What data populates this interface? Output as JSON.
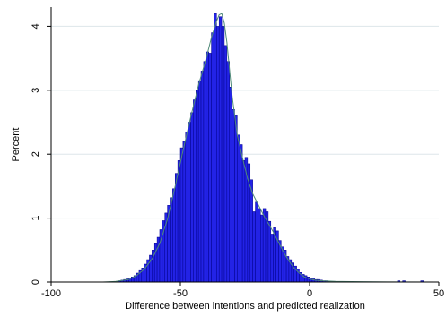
{
  "chart_data": {
    "type": "bar",
    "subtype": "histogram-with-density",
    "title": "",
    "xlabel": "Difference between intentions and predicted realization",
    "ylabel": "Percent",
    "xlim": [
      -100,
      50
    ],
    "ylim": [
      0,
      4.3
    ],
    "x_ticks": [
      "-100",
      "-50",
      "0",
      "50"
    ],
    "y_ticks": [
      "0",
      "1",
      "2",
      "3",
      "4"
    ],
    "grid": "horizontal",
    "bin_width": 1,
    "colors": {
      "bar_fill": "#2323e6",
      "bar_edge": "#00008c",
      "density": "#4f8a78",
      "grid": "#dde6ea"
    },
    "density_curve": {
      "x": [
        -80,
        -75,
        -70,
        -67,
        -64,
        -61,
        -58,
        -55,
        -52,
        -49,
        -46,
        -43,
        -40,
        -38,
        -36,
        -35,
        -34,
        -33,
        -32,
        -30,
        -28,
        -26,
        -24,
        -22,
        -20,
        -18,
        -16,
        -14,
        -12,
        -10,
        -8,
        -6,
        -4,
        -2,
        0,
        2,
        5,
        10,
        20,
        30,
        50
      ],
      "y": [
        0,
        0.01,
        0.04,
        0.1,
        0.2,
        0.36,
        0.6,
        0.98,
        1.5,
        2.05,
        2.58,
        3.08,
        3.5,
        3.82,
        4.08,
        4.18,
        4.2,
        4.05,
        3.75,
        2.92,
        2.3,
        1.95,
        1.62,
        1.38,
        1.22,
        1.06,
        0.92,
        0.78,
        0.62,
        0.46,
        0.33,
        0.22,
        0.14,
        0.08,
        0.05,
        0.03,
        0.02,
        0.01,
        0.005,
        0.002,
        0
      ]
    },
    "series": [
      {
        "bins_x": [
          -74,
          -73,
          -72,
          -71,
          -70,
          -69,
          -68,
          -67,
          -66,
          -65,
          -64,
          -63,
          -62,
          -61,
          -60,
          -59,
          -58,
          -57,
          -56,
          -55,
          -54,
          -53,
          -52,
          -51,
          -50,
          -49,
          -48,
          -47,
          -46,
          -45,
          -44,
          -43,
          -42,
          -41,
          -40,
          -39,
          -38,
          -37,
          -36,
          -35,
          -34,
          -33,
          -32,
          -31,
          -30,
          -29,
          -28,
          -27,
          -26,
          -25,
          -24,
          -23,
          -22,
          -21,
          -20,
          -19,
          -18,
          -17,
          -16,
          -15,
          -14,
          -13,
          -12,
          -11,
          -10,
          -9,
          -8,
          -7,
          -6,
          -5,
          -4,
          -3,
          -2,
          -1,
          0,
          1,
          2,
          3,
          4,
          5,
          6,
          7,
          34,
          36,
          43
        ],
        "values": [
          0.02,
          0.03,
          0.04,
          0.05,
          0.06,
          0.08,
          0.1,
          0.14,
          0.18,
          0.22,
          0.28,
          0.35,
          0.42,
          0.5,
          0.6,
          0.7,
          0.82,
          0.96,
          1.08,
          1.2,
          1.32,
          1.46,
          1.7,
          1.9,
          2.1,
          2.2,
          2.35,
          2.5,
          2.65,
          2.85,
          3.0,
          3.15,
          3.3,
          3.45,
          3.6,
          3.58,
          3.9,
          4.2,
          4.0,
          4.15,
          4.0,
          3.7,
          3.45,
          3.05,
          2.7,
          2.6,
          2.3,
          2.15,
          1.9,
          1.95,
          1.85,
          1.6,
          1.1,
          1.25,
          1.15,
          1.05,
          1.15,
          1.1,
          0.95,
          0.75,
          0.85,
          0.8,
          0.65,
          0.55,
          0.5,
          0.4,
          0.35,
          0.3,
          0.25,
          0.2,
          0.15,
          0.12,
          0.1,
          0.08,
          0.06,
          0.05,
          0.04,
          0.04,
          0.03,
          0.02,
          0.02,
          0.01,
          0.02,
          0.02,
          0.02
        ]
      }
    ]
  }
}
